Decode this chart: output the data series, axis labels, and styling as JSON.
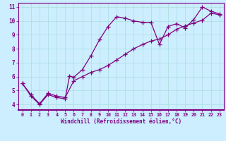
{
  "line1_x": [
    0,
    1,
    2,
    3,
    4,
    5,
    5.5,
    6,
    7,
    8,
    9,
    10,
    11,
    12,
    13,
    14,
    15,
    16,
    17,
    18,
    19,
    20,
    21,
    22,
    23
  ],
  "line1_y": [
    5.5,
    4.6,
    4.0,
    4.7,
    4.5,
    4.4,
    6.05,
    5.95,
    6.5,
    7.5,
    8.65,
    9.6,
    10.3,
    10.2,
    10.0,
    9.9,
    9.9,
    8.3,
    9.6,
    9.8,
    9.5,
    10.1,
    11.0,
    10.7,
    10.5
  ],
  "line2_x": [
    0,
    1,
    2,
    3,
    4,
    5,
    6,
    7,
    8,
    9,
    10,
    11,
    12,
    13,
    14,
    15,
    16,
    17,
    18,
    19,
    20,
    21,
    22,
    23
  ],
  "line2_y": [
    5.5,
    4.7,
    4.05,
    4.8,
    4.6,
    4.5,
    5.7,
    6.0,
    6.3,
    6.5,
    6.8,
    7.2,
    7.6,
    8.0,
    8.3,
    8.55,
    8.7,
    9.0,
    9.4,
    9.65,
    9.85,
    10.05,
    10.55,
    10.45
  ],
  "line_color": "#800080",
  "bg_color": "#cceeff",
  "grid_color": "#aadddd",
  "xlabel": "Windchill (Refroidissement éolien,°C)",
  "xlim": [
    -0.5,
    23.5
  ],
  "ylim": [
    3.6,
    11.3
  ],
  "xticks": [
    0,
    1,
    2,
    3,
    4,
    5,
    6,
    7,
    8,
    9,
    10,
    11,
    12,
    13,
    14,
    15,
    16,
    17,
    18,
    19,
    20,
    21,
    22,
    23
  ],
  "yticks": [
    4,
    5,
    6,
    7,
    8,
    9,
    10,
    11
  ],
  "marker": "+",
  "marker_size": 4,
  "linewidth": 0.9
}
